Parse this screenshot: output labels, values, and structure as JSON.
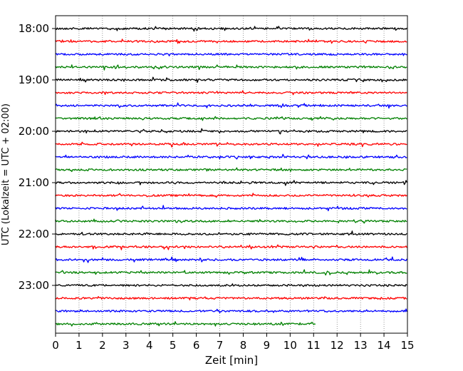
{
  "chart_data": {
    "type": "line",
    "title": "",
    "xlabel": "Zeit  [min]",
    "ylabel": "UTC (Lokalzeit = UTC + 02:00)",
    "xlim": [
      0,
      15
    ],
    "x_ticks": [
      "0",
      "1",
      "2",
      "3",
      "4",
      "5",
      "6",
      "7",
      "8",
      "9",
      "10",
      "11",
      "12",
      "13",
      "14",
      "15"
    ],
    "y_tick_labels": [
      "18:00",
      "19:00",
      "20:00",
      "21:00",
      "22:00",
      "23:00"
    ],
    "rows_per_hour": 4,
    "grid": "vertical dotted",
    "colors_cycle": [
      "#000000",
      "#ff0000",
      "#0000ff",
      "#008000"
    ],
    "traces": [
      {
        "start": "18:00",
        "end_min": 15,
        "color": "#000000"
      },
      {
        "start": "18:15",
        "end_min": 15,
        "color": "#ff0000"
      },
      {
        "start": "18:30",
        "end_min": 15,
        "color": "#0000ff"
      },
      {
        "start": "18:45",
        "end_min": 15,
        "color": "#008000"
      },
      {
        "start": "19:00",
        "end_min": 15,
        "color": "#000000"
      },
      {
        "start": "19:15",
        "end_min": 15,
        "color": "#ff0000"
      },
      {
        "start": "19:30",
        "end_min": 15,
        "color": "#0000ff"
      },
      {
        "start": "19:45",
        "end_min": 15,
        "color": "#008000"
      },
      {
        "start": "20:00",
        "end_min": 15,
        "color": "#000000"
      },
      {
        "start": "20:15",
        "end_min": 15,
        "color": "#ff0000"
      },
      {
        "start": "20:30",
        "end_min": 15,
        "color": "#0000ff"
      },
      {
        "start": "20:45",
        "end_min": 15,
        "color": "#008000"
      },
      {
        "start": "21:00",
        "end_min": 15,
        "color": "#000000"
      },
      {
        "start": "21:15",
        "end_min": 15,
        "color": "#ff0000"
      },
      {
        "start": "21:30",
        "end_min": 15,
        "color": "#0000ff"
      },
      {
        "start": "21:45",
        "end_min": 15,
        "color": "#008000"
      },
      {
        "start": "22:00",
        "end_min": 15,
        "color": "#000000"
      },
      {
        "start": "22:15",
        "end_min": 15,
        "color": "#ff0000"
      },
      {
        "start": "22:30",
        "end_min": 15,
        "color": "#0000ff"
      },
      {
        "start": "22:45",
        "end_min": 15,
        "color": "#008000"
      },
      {
        "start": "23:00",
        "end_min": 15,
        "color": "#000000"
      },
      {
        "start": "23:15",
        "end_min": 15,
        "color": "#ff0000"
      },
      {
        "start": "23:30",
        "end_min": 15,
        "color": "#0000ff"
      },
      {
        "start": "23:45",
        "end_min": 11.1,
        "color": "#008000"
      }
    ]
  }
}
